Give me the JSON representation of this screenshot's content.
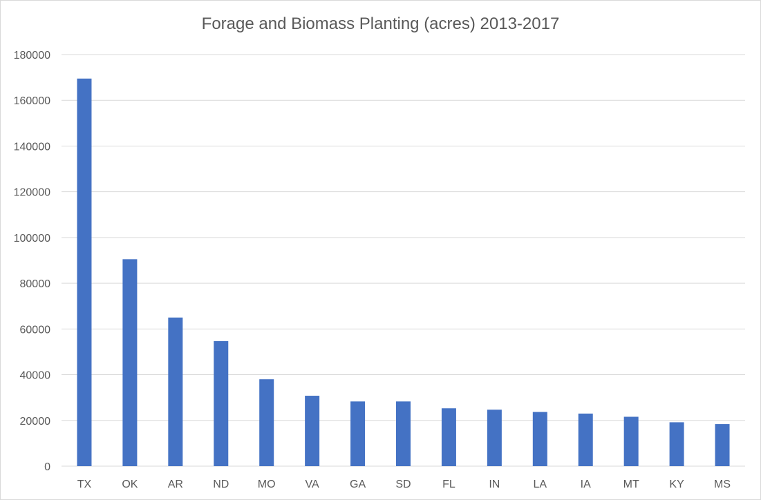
{
  "chart_data": {
    "type": "bar",
    "title": "Forage and Biomass Planting (acres) 2013-2017",
    "categories": [
      "TX",
      "OK",
      "AR",
      "ND",
      "MO",
      "VA",
      "GA",
      "SD",
      "FL",
      "IN",
      "LA",
      "IA",
      "MT",
      "KY",
      "MS"
    ],
    "values": [
      169500,
      90500,
      65000,
      54700,
      38000,
      30800,
      28300,
      28300,
      25300,
      24700,
      23700,
      23000,
      21600,
      19200,
      18400
    ],
    "ylim": [
      0,
      180000
    ],
    "yticks": [
      0,
      20000,
      40000,
      60000,
      80000,
      100000,
      120000,
      140000,
      160000,
      180000
    ],
    "ytick_labels": [
      "0",
      "20000",
      "40000",
      "60000",
      "80000",
      "100000",
      "120000",
      "140000",
      "160000",
      "180000"
    ],
    "xlabel": "",
    "ylabel": "",
    "grid": true,
    "legend": "none",
    "bar_color": "#4472c4",
    "grid_color": "#d9d9d9"
  }
}
